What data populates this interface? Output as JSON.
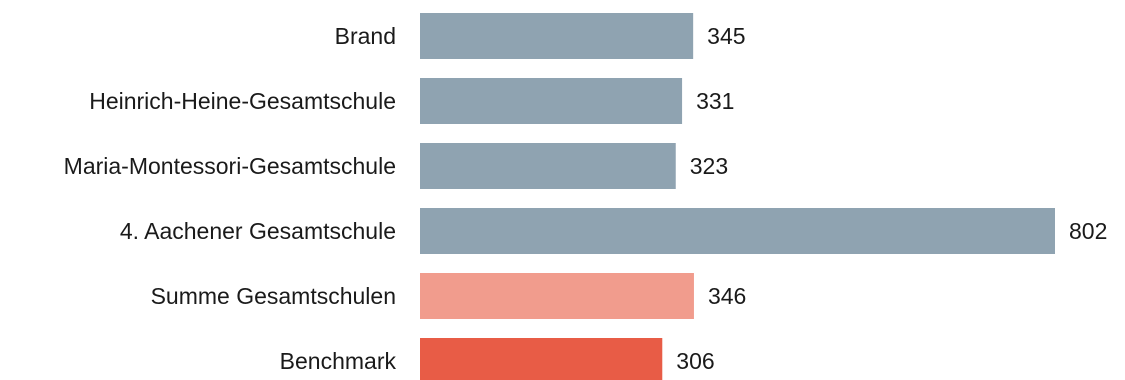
{
  "chart_data": {
    "type": "bar",
    "orientation": "horizontal",
    "title": "",
    "xlabel": "",
    "ylabel": "",
    "categories": [
      "Brand",
      "Heinrich-Heine-Gesamtschule",
      "Maria-Montessori-Gesamtschule",
      "4. Aachener Gesamtschule",
      "Summe Gesamtschulen",
      "Benchmark"
    ],
    "values": [
      345,
      331,
      323,
      802,
      346,
      306
    ],
    "xlim": [
      0,
      802
    ],
    "grid": false,
    "legend": "none",
    "colors": [
      "#8fa3b1",
      "#8fa3b1",
      "#8fa3b1",
      "#8fa3b1",
      "#f19c8d",
      "#e85c46"
    ]
  }
}
